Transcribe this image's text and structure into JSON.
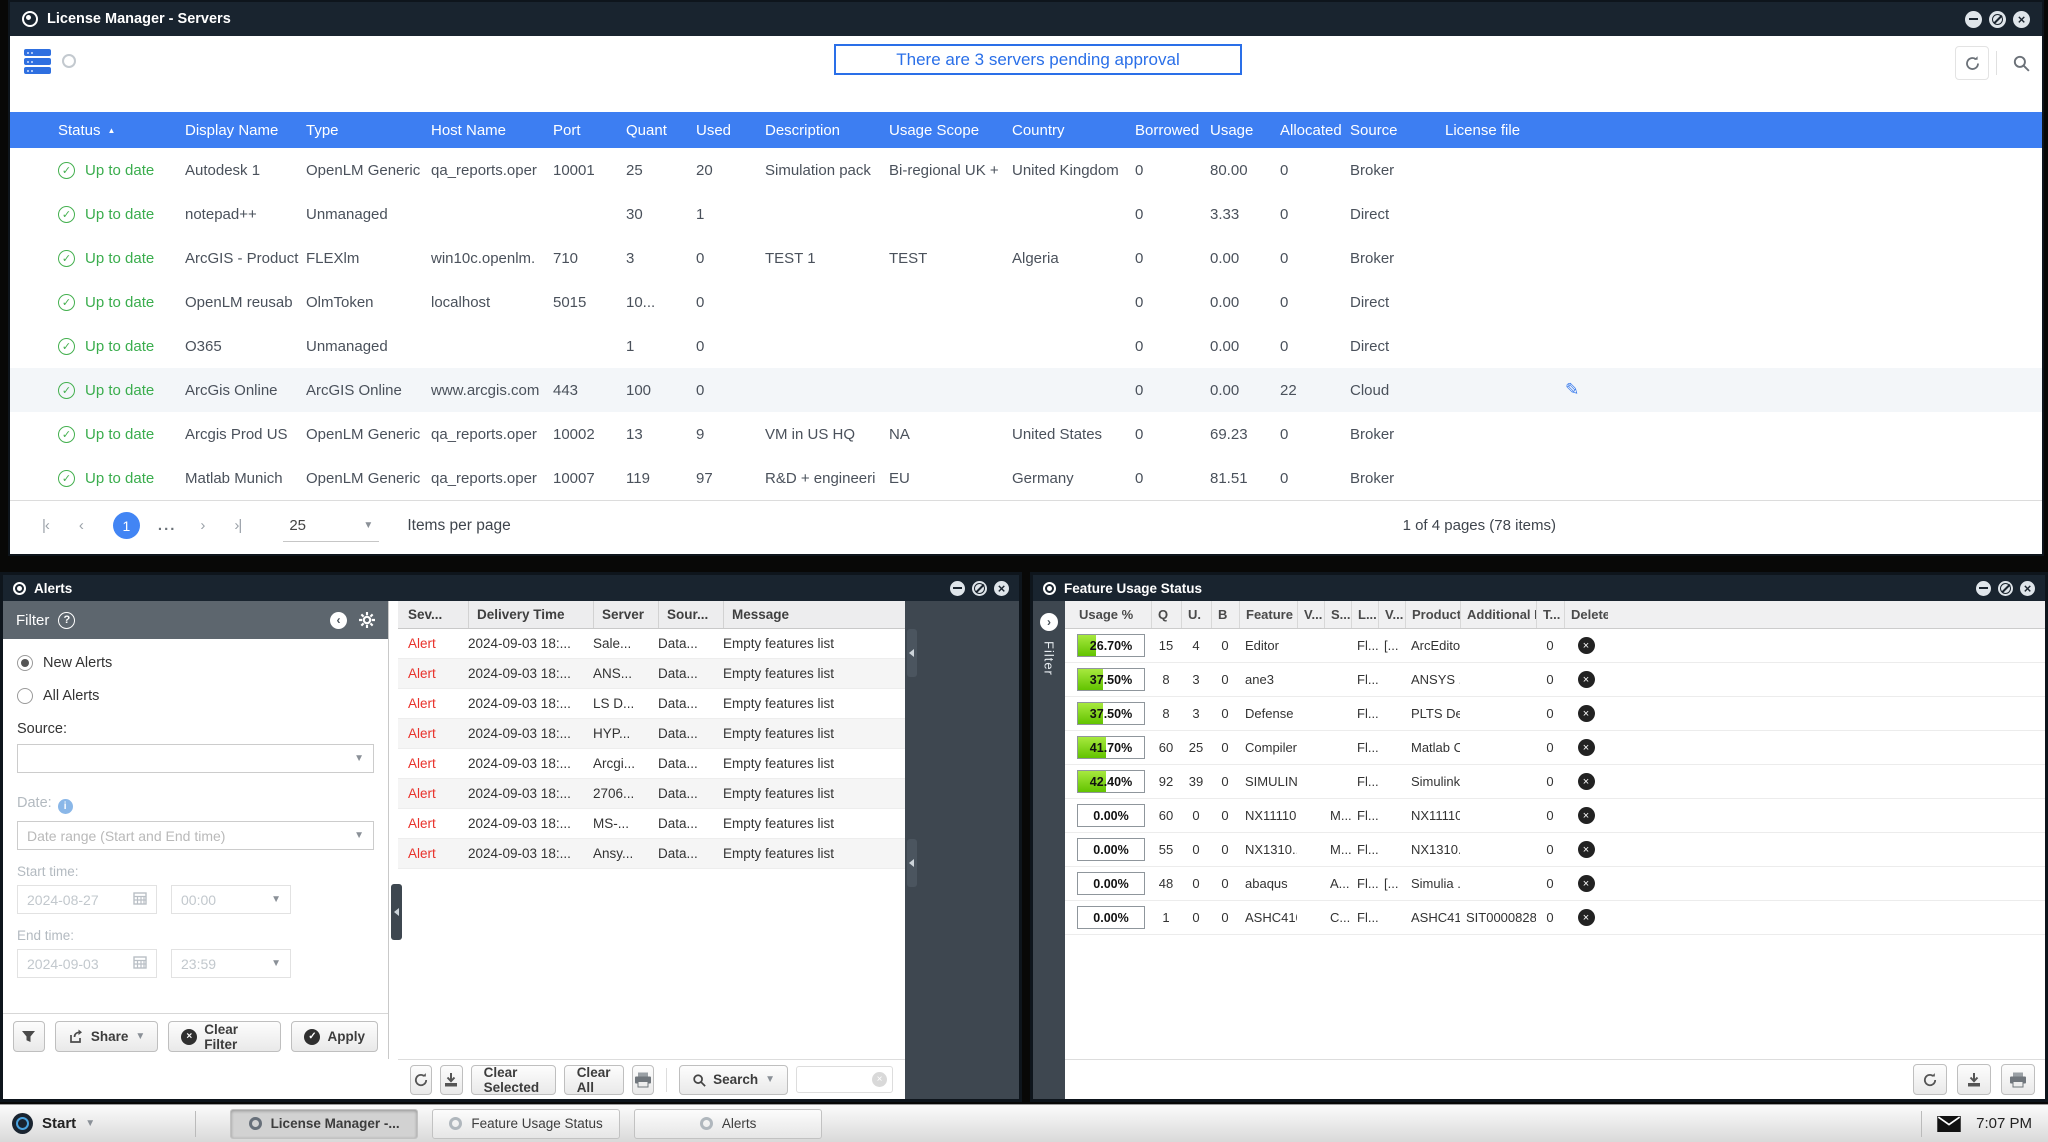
{
  "main": {
    "title": "License Manager - Servers",
    "banner": "There are 3 servers pending approval",
    "columns": [
      "Status",
      "Display Name",
      "Type",
      "Host Name",
      "Port",
      "Quant",
      "Used",
      "Description",
      "Usage Scope",
      "Country",
      "Borrowed",
      "Usage",
      "Allocated",
      "Source",
      "License file"
    ],
    "rows": [
      {
        "status": "Up to date",
        "display": "Autodesk 1",
        "type": "OpenLM Generic",
        "host": "qa_reports.oper",
        "port": "10001",
        "quant": "25",
        "used": "20",
        "used_link": true,
        "desc": "Simulation pack",
        "scope": "Bi-regional UK +",
        "country": "United Kingdom",
        "borrowed": "0",
        "usage": "80.00",
        "allocated": "0",
        "alloc_link": false,
        "source": "Broker",
        "source_link": true,
        "edit": false,
        "highlight": false
      },
      {
        "status": "Up to date",
        "display": "notepad++",
        "type": "Unmanaged",
        "host": "",
        "port": "",
        "quant": "30",
        "used": "1",
        "used_link": true,
        "desc": "",
        "scope": "",
        "country": "",
        "borrowed": "0",
        "usage": "3.33",
        "allocated": "0",
        "alloc_link": false,
        "source": "Direct",
        "source_link": false,
        "edit": false,
        "highlight": false
      },
      {
        "status": "Up to date",
        "display": "ArcGIS - Product",
        "type": "FLEXlm",
        "host": "win10c.openlm.",
        "port": "710",
        "quant": "3",
        "used": "0",
        "used_link": false,
        "desc": "TEST 1",
        "scope": "TEST",
        "country": "Algeria",
        "borrowed": "0",
        "usage": "0.00",
        "allocated": "0",
        "alloc_link": false,
        "source": "Broker",
        "source_link": true,
        "edit": false,
        "highlight": false
      },
      {
        "status": "Up to date",
        "display": "OpenLM reusab",
        "type": "OlmToken",
        "host": "localhost",
        "port": "5015",
        "quant": "10...",
        "used": "0",
        "used_link": false,
        "desc": "",
        "scope": "",
        "country": "",
        "borrowed": "0",
        "usage": "0.00",
        "allocated": "0",
        "alloc_link": false,
        "source": "Direct",
        "source_link": false,
        "edit": false,
        "highlight": false
      },
      {
        "status": "Up to date",
        "display": "O365",
        "type": "Unmanaged",
        "host": "",
        "port": "",
        "quant": "1",
        "used": "0",
        "used_link": false,
        "desc": "",
        "scope": "",
        "country": "",
        "borrowed": "0",
        "usage": "0.00",
        "allocated": "0",
        "alloc_link": false,
        "source": "Direct",
        "source_link": false,
        "edit": false,
        "highlight": false
      },
      {
        "status": "Up to date",
        "display": "ArcGis Online",
        "type": "ArcGIS Online",
        "host": "www.arcgis.com",
        "port": "443",
        "quant": "100",
        "used": "0",
        "used_link": false,
        "desc": "",
        "scope": "",
        "country": "",
        "borrowed": "0",
        "usage": "0.00",
        "allocated": "22",
        "alloc_link": true,
        "source": "Cloud",
        "source_link": false,
        "edit": true,
        "highlight": true
      },
      {
        "status": "Up to date",
        "display": "Arcgis Prod US",
        "type": "OpenLM Generic",
        "host": "qa_reports.oper",
        "port": "10002",
        "quant": "13",
        "used": "9",
        "used_link": true,
        "desc": "VM in US HQ",
        "scope": "NA",
        "country": "United States",
        "borrowed": "0",
        "usage": "69.23",
        "allocated": "0",
        "alloc_link": false,
        "source": "Broker",
        "source_link": true,
        "edit": false,
        "highlight": false
      },
      {
        "status": "Up to date",
        "display": "Matlab Munich",
        "type": "OpenLM Generic",
        "host": "qa_reports.oper",
        "port": "10007",
        "quant": "119",
        "used": "97",
        "used_link": true,
        "desc": "R&D + engineeri",
        "scope": "EU",
        "country": "Germany",
        "borrowed": "0",
        "usage": "81.51",
        "allocated": "0",
        "alloc_link": false,
        "source": "Broker",
        "source_link": true,
        "edit": false,
        "highlight": false
      }
    ],
    "pager": {
      "first": "|‹",
      "prev": "‹",
      "page": "1",
      "dots": "...",
      "next": "›",
      "last": "›|",
      "page_size": "25",
      "items_label": "Items per page",
      "summary": "1 of 4 pages (78 items)"
    }
  },
  "alerts": {
    "title": "Alerts",
    "filter": {
      "title": "Filter",
      "help": "?",
      "new_alerts": "New Alerts",
      "all_alerts": "All Alerts",
      "source_label": "Source:",
      "date_label": "Date:",
      "date_range_placeholder": "Date range (Start and End time)",
      "start_time_label": "Start time:",
      "start_date": "2024-08-27",
      "start_clock": "00:00",
      "end_time_label": "End time:",
      "end_date": "2024-09-03",
      "end_clock": "23:59",
      "share_label": "Share",
      "clear_filter_label": "Clear Filter",
      "apply_label": "Apply"
    },
    "columns": [
      "Sev...",
      "Delivery Time",
      "Server",
      "Sour...",
      "Message"
    ],
    "rows": [
      {
        "severity": "Alert",
        "time": "2024-09-03 18:...",
        "server": "Sale...",
        "source": "Data...",
        "message": "Empty features list"
      },
      {
        "severity": "Alert",
        "time": "2024-09-03 18:...",
        "server": "ANS...",
        "source": "Data...",
        "message": "Empty features list"
      },
      {
        "severity": "Alert",
        "time": "2024-09-03 18:...",
        "server": "LS D...",
        "source": "Data...",
        "message": "Empty features list"
      },
      {
        "severity": "Alert",
        "time": "2024-09-03 18:...",
        "server": "HYP...",
        "source": "Data...",
        "message": "Empty features list"
      },
      {
        "severity": "Alert",
        "time": "2024-09-03 18:...",
        "server": "Arcgi...",
        "source": "Data...",
        "message": "Empty features list"
      },
      {
        "severity": "Alert",
        "time": "2024-09-03 18:...",
        "server": "2706...",
        "source": "Data...",
        "message": "Empty features list"
      },
      {
        "severity": "Alert",
        "time": "2024-09-03 18:...",
        "server": "MS-...",
        "source": "Data...",
        "message": "Empty features list"
      },
      {
        "severity": "Alert",
        "time": "2024-09-03 18:...",
        "server": "Ansy...",
        "source": "Data...",
        "message": "Empty features list"
      }
    ],
    "toolbar": {
      "clear_selected": "Clear Selected",
      "clear_all": "Clear All",
      "search_label": "Search"
    }
  },
  "features": {
    "title": "Feature Usage Status",
    "filter_tab": "Filter",
    "columns": [
      "Usage %",
      "Q",
      "U.",
      "B",
      "Feature ...",
      "V...",
      "S...",
      "L...",
      "V...",
      "Product ...",
      "Additional Key",
      "T...",
      "Delete"
    ],
    "rows": [
      {
        "pct": "26.70%",
        "fill": 26.7,
        "q": "15",
        "u": "4",
        "b": "0",
        "feature": "Editor",
        "v1": "",
        "s": "",
        "l": "Fl...",
        "v2": "[...",
        "product": "ArcEditor",
        "key": "",
        "t": "0"
      },
      {
        "pct": "37.50%",
        "fill": 37.5,
        "q": "8",
        "u": "3",
        "b": "0",
        "feature": "ane3",
        "v1": "",
        "s": "",
        "l": "Fl...",
        "v2": "",
        "product": "ANSYS ...",
        "key": "",
        "t": "0"
      },
      {
        "pct": "37.50%",
        "fill": 37.5,
        "q": "8",
        "u": "3",
        "b": "0",
        "feature": "Defense",
        "v1": "",
        "s": "",
        "l": "Fl...",
        "v2": "",
        "product": "PLTS De...",
        "key": "",
        "t": "0"
      },
      {
        "pct": "41.70%",
        "fill": 41.7,
        "q": "60",
        "u": "25",
        "b": "0",
        "feature": "Compiler",
        "v1": "",
        "s": "",
        "l": "Fl...",
        "v2": "",
        "product": "Matlab C...",
        "key": "",
        "t": "0"
      },
      {
        "pct": "42.40%",
        "fill": 42.4,
        "q": "92",
        "u": "39",
        "b": "0",
        "feature": "SIMULINK",
        "v1": "",
        "s": "",
        "l": "Fl...",
        "v2": "",
        "product": "Simulink ...",
        "key": "",
        "t": "0"
      },
      {
        "pct": "0.00%",
        "fill": 0,
        "q": "60",
        "u": "0",
        "b": "0",
        "feature": "NX11110...",
        "v1": "",
        "s": "M...",
        "l": "Fl...",
        "v2": "",
        "product": "NX11110...",
        "key": "",
        "t": "0"
      },
      {
        "pct": "0.00%",
        "fill": 0,
        "q": "55",
        "u": "0",
        "b": "0",
        "feature": "NX1310...",
        "v1": "",
        "s": "M...",
        "l": "Fl...",
        "v2": "",
        "product": "NX1310...",
        "key": "",
        "t": "0"
      },
      {
        "pct": "0.00%",
        "fill": 0,
        "q": "48",
        "u": "0",
        "b": "0",
        "feature": "abaqus",
        "v1": "",
        "s": "A...",
        "l": "Fl...",
        "v2": "[...",
        "product": "Simulia ...",
        "key": "",
        "t": "0"
      },
      {
        "pct": "0.00%",
        "fill": 0,
        "q": "1",
        "u": "0",
        "b": "0",
        "feature": "ASHC410",
        "v1": "",
        "s": "C...",
        "l": "Fl...",
        "v2": "",
        "product": "ASHC410",
        "key": "SIT00008285_...",
        "t": "0"
      }
    ]
  },
  "taskbar": {
    "start_label": "Start",
    "items": [
      {
        "label": "License Manager -...",
        "active": true
      },
      {
        "label": "Feature Usage Status",
        "active": false
      },
      {
        "label": "Alerts",
        "active": false
      }
    ],
    "clock": "7:07 PM"
  }
}
